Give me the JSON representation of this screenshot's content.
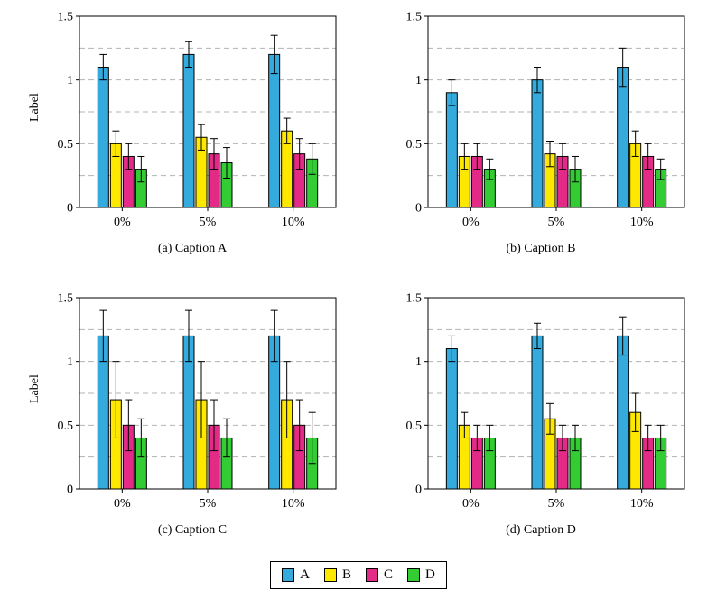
{
  "chart_data": [
    {
      "type": "bar",
      "caption": "(a) Caption A",
      "ylabel": "Label",
      "categories": [
        "0%",
        "5%",
        "10%"
      ],
      "ylim": [
        0,
        1.5
      ],
      "yticks": [
        0,
        0.5,
        1,
        1.5
      ],
      "ytick_labels": [
        "0",
        "0.5",
        "1",
        "1.5"
      ],
      "gridlines": [
        0.25,
        0.5,
        0.75,
        1.0,
        1.25
      ],
      "grid_style": "dashed",
      "legend_position": "none",
      "series": [
        {
          "name": "A",
          "color": "#35AADD",
          "values": [
            1.1,
            1.2,
            1.2
          ],
          "errors": [
            0.1,
            0.1,
            0.15
          ]
        },
        {
          "name": "B",
          "color": "#FFE800",
          "values": [
            0.5,
            0.55,
            0.6
          ],
          "errors": [
            0.1,
            0.1,
            0.1
          ]
        },
        {
          "name": "C",
          "color": "#E42A87",
          "values": [
            0.4,
            0.42,
            0.42
          ],
          "errors": [
            0.1,
            0.12,
            0.12
          ]
        },
        {
          "name": "D",
          "color": "#33CC33",
          "values": [
            0.3,
            0.35,
            0.38
          ],
          "errors": [
            0.1,
            0.12,
            0.12
          ]
        }
      ]
    },
    {
      "type": "bar",
      "caption": "(b) Caption B",
      "ylabel": "",
      "categories": [
        "0%",
        "5%",
        "10%"
      ],
      "ylim": [
        0,
        1.5
      ],
      "yticks": [
        0,
        0.5,
        1,
        1.5
      ],
      "ytick_labels": [
        "0",
        "0.5",
        "1",
        "1.5"
      ],
      "gridlines": [
        0.25,
        0.5,
        0.75,
        1.0,
        1.25
      ],
      "grid_style": "dashed",
      "legend_position": "none",
      "series": [
        {
          "name": "A",
          "color": "#35AADD",
          "values": [
            0.9,
            1.0,
            1.1
          ],
          "errors": [
            0.1,
            0.1,
            0.15
          ]
        },
        {
          "name": "B",
          "color": "#FFE800",
          "values": [
            0.4,
            0.42,
            0.5
          ],
          "errors": [
            0.1,
            0.1,
            0.1
          ]
        },
        {
          "name": "C",
          "color": "#E42A87",
          "values": [
            0.4,
            0.4,
            0.4
          ],
          "errors": [
            0.1,
            0.1,
            0.1
          ]
        },
        {
          "name": "D",
          "color": "#33CC33",
          "values": [
            0.3,
            0.3,
            0.3
          ],
          "errors": [
            0.08,
            0.1,
            0.08
          ]
        }
      ]
    },
    {
      "type": "bar",
      "caption": "(c) Caption C",
      "ylabel": "Label",
      "categories": [
        "0%",
        "5%",
        "10%"
      ],
      "ylim": [
        0,
        1.5
      ],
      "yticks": [
        0,
        0.5,
        1,
        1.5
      ],
      "ytick_labels": [
        "0",
        "0.5",
        "1",
        "1.5"
      ],
      "gridlines": [
        0.25,
        0.5,
        0.75,
        1.0,
        1.25
      ],
      "grid_style": "dashed",
      "legend_position": "none",
      "series": [
        {
          "name": "A",
          "color": "#35AADD",
          "values": [
            1.2,
            1.2,
            1.2
          ],
          "errors": [
            0.2,
            0.2,
            0.2
          ]
        },
        {
          "name": "B",
          "color": "#FFE800",
          "values": [
            0.7,
            0.7,
            0.7
          ],
          "errors": [
            0.3,
            0.3,
            0.3
          ]
        },
        {
          "name": "C",
          "color": "#E42A87",
          "values": [
            0.5,
            0.5,
            0.5
          ],
          "errors": [
            0.2,
            0.2,
            0.2
          ]
        },
        {
          "name": "D",
          "color": "#33CC33",
          "values": [
            0.4,
            0.4,
            0.4
          ],
          "errors": [
            0.15,
            0.15,
            0.2
          ]
        }
      ]
    },
    {
      "type": "bar",
      "caption": "(d) Caption D",
      "ylabel": "",
      "categories": [
        "0%",
        "5%",
        "10%"
      ],
      "ylim": [
        0,
        1.5
      ],
      "yticks": [
        0,
        0.5,
        1,
        1.5
      ],
      "ytick_labels": [
        "0",
        "0.5",
        "1",
        "1.5"
      ],
      "gridlines": [
        0.25,
        0.5,
        0.75,
        1.0,
        1.25
      ],
      "grid_style": "dashed",
      "legend_position": "none",
      "series": [
        {
          "name": "A",
          "color": "#35AADD",
          "values": [
            1.1,
            1.2,
            1.2
          ],
          "errors": [
            0.1,
            0.1,
            0.15
          ]
        },
        {
          "name": "B",
          "color": "#FFE800",
          "values": [
            0.5,
            0.55,
            0.6
          ],
          "errors": [
            0.1,
            0.12,
            0.15
          ]
        },
        {
          "name": "C",
          "color": "#E42A87",
          "values": [
            0.4,
            0.4,
            0.4
          ],
          "errors": [
            0.1,
            0.1,
            0.1
          ]
        },
        {
          "name": "D",
          "color": "#33CC33",
          "values": [
            0.4,
            0.4,
            0.4
          ],
          "errors": [
            0.1,
            0.1,
            0.1
          ]
        }
      ]
    }
  ],
  "legend": {
    "entries": [
      {
        "label": "A",
        "color": "#35AADD"
      },
      {
        "label": "B",
        "color": "#FFE800"
      },
      {
        "label": "C",
        "color": "#E42A87"
      },
      {
        "label": "D",
        "color": "#33CC33"
      }
    ]
  }
}
